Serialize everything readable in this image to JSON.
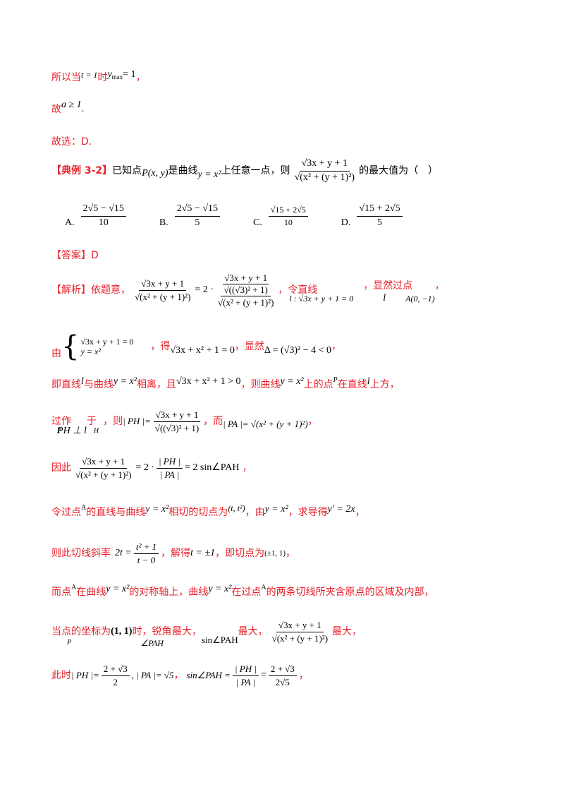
{
  "lines": {
    "l1": {
      "a": "所以当",
      "m1": "t = 1",
      "b": "时",
      "m2": "y",
      "m2sub": "max",
      "m2rest": " = 1",
      "c": "，"
    },
    "l2": {
      "a": "故",
      "m": "a ≥ 1",
      "b": "."
    },
    "l3": {
      "a": "故选：D."
    },
    "l4": {
      "head": "【典例 3-2】",
      "a": "已知点",
      "m1": "P(x, y)",
      "b": "是曲线",
      "m2": "y = x²",
      "c": "上任意一点，则",
      "fnum": "√3x + y + 1",
      "fden": "√(x² + (y + 1)²)",
      "d": "的最大值为（　）"
    },
    "options": [
      {
        "label": "A.",
        "num": "2√5 − √15",
        "den": "10"
      },
      {
        "label": "B.",
        "num": "2√5 − √15",
        "den": "5"
      },
      {
        "label": "C.",
        "num": "√15 + 2√5",
        "den": "10"
      },
      {
        "label": "D.",
        "num": "√15 + 2√5",
        "den": "5"
      }
    ],
    "answer": {
      "head": "【答案】",
      "val": "D"
    },
    "l6": {
      "head": "【解析】",
      "a": "依题意，",
      "f1num": "√3x + y + 1",
      "f1den": "√(x² + (y + 1)²)",
      "eq": "= 2 ·",
      "f2num_top": "√3x + y + 1",
      "f2num_mid": "√((√3)² + 1)",
      "f2den": "√(x² + (y + 1)²)",
      "b": "，令直线",
      "m1": "l : √3x + y + 1 = 0",
      "c": "，显然",
      "m2": "l",
      "d": "过点",
      "m3": "A(0, −1)",
      "e": "，"
    },
    "l7": {
      "a": "由",
      "sys1": "√3x + y + 1 = 0",
      "sys2": "y = x²",
      "b": "，得",
      "m1": "√3x + x² + 1 = 0",
      "c": "，显然",
      "m2": "Δ = (√3)² − 4 < 0",
      "d": "，"
    },
    "l8": {
      "a": "即直线",
      "m1": "l",
      "b": "与曲线",
      "m2": "y = x²",
      "c": "相离，且",
      "m3": "√3x + x² + 1 > 0",
      "d": "，则曲线",
      "m4": "y = x²",
      "e": "上的点",
      "m5": "P",
      "f": "在直线",
      "m6": "l",
      "g": "上方，"
    },
    "l9": {
      "a": "过",
      "m1": "P",
      "b": "作",
      "m2": "PH ⊥ l",
      "c": "于",
      "m3": "H",
      "d": "，则",
      "m4": "| PH |=",
      "fnum": "√3x + y + 1",
      "fden": "√((√3)² + 1)",
      "e": "，而",
      "m5": "| PA |= √(x² + (y + 1)²)",
      "f": "，"
    },
    "l10": {
      "a": "因此",
      "fnum": "√3x + y + 1",
      "fden": "√(x² + (y + 1)²)",
      "eq": "= 2 ·",
      "f2num": "| PH |",
      "f2den": "| PA |",
      "rest": "= 2 sin∠PAH",
      "b": "，"
    },
    "l11": {
      "a": "令过点",
      "m1": "A",
      "b": "的直线与曲线",
      "m2": "y = x²",
      "c": "相切的切点为",
      "m3": "(t, t²)",
      "d": "，由",
      "m4": "y = x²",
      "e": "，求导得",
      "m5": "y′ = 2x",
      "f": "，"
    },
    "l12": {
      "a": "则此切线斜率",
      "m1": "2t =",
      "fnum": "t² + 1",
      "fden": "t − 0",
      "b": "，解得",
      "m2": "t = ±1",
      "c": "，即切点为",
      "m3": "(±1, 1)",
      "d": "，"
    },
    "l13": {
      "a": "而点",
      "m1": "A",
      "b": "在曲线",
      "m2": "y = x²",
      "c": "的对称轴上，曲线",
      "m3": "y = x²",
      "d": "在过点",
      "m4": "A",
      "e": "的两条切线所夹含原点的区域及内部，"
    },
    "l14": {
      "a": "当点",
      "m1": "P",
      "b": "的坐标为",
      "m2": "(1, 1)",
      "c": "时，锐角",
      "m3": "∠PAH",
      "d": "最大，",
      "m4": "sin∠PAH",
      "e": "最大，",
      "fnum": "√3x + y + 1",
      "fden": "√(x² + (y + 1)²)",
      "f": "最大，"
    },
    "l15": {
      "a": "此时",
      "m1": "| PH |=",
      "f1num": "2 + √3",
      "f1den": "2",
      "m2": ", | PA |= √5",
      "b": "，",
      "m3": "sin∠PAH =",
      "f2num": "| PH |",
      "f2den": "| PA |",
      "eq": "=",
      "f3num": "2 + √3",
      "f3den": "2√5",
      "c": "，"
    }
  }
}
